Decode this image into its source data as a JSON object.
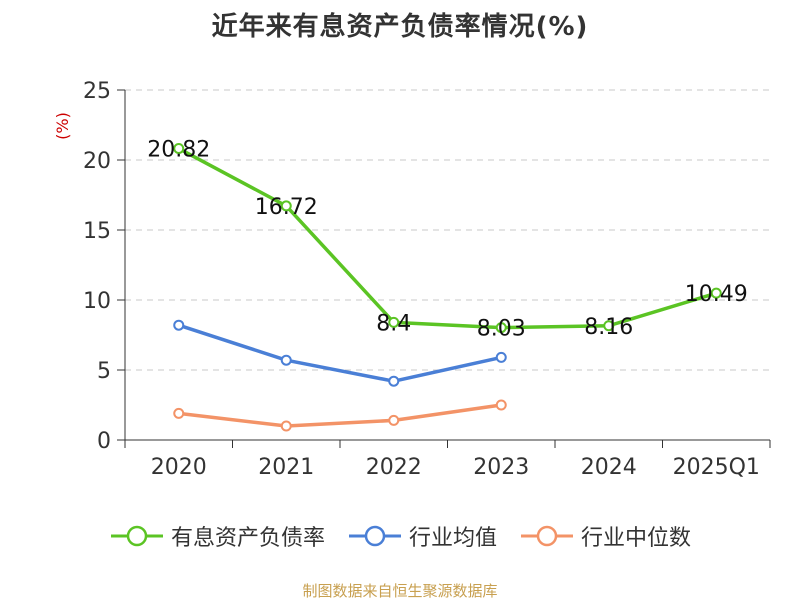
{
  "chart_data": {
    "type": "line",
    "title": "近年来有息资产负债率情况(%)",
    "ylabel": "(%)",
    "categories": [
      "2020",
      "2021",
      "2022",
      "2023",
      "2024",
      "2025Q1"
    ],
    "ylim": [
      0,
      25
    ],
    "yticks": [
      0,
      5,
      10,
      15,
      20,
      25
    ],
    "grid": true,
    "legend_position": "bottom",
    "series": [
      {
        "name": "有息资产负债率",
        "color": "#5bc424",
        "values": [
          20.82,
          16.72,
          8.4,
          8.03,
          8.16,
          10.49
        ],
        "data_labels": [
          "20.82",
          "16.72",
          "8.4",
          "8.03",
          "8.16",
          "10.49"
        ]
      },
      {
        "name": "行业均值",
        "color": "#4a7fd6",
        "values": [
          8.2,
          5.7,
          4.2,
          5.9,
          null,
          null
        ],
        "data_labels": null
      },
      {
        "name": "行业中位数",
        "color": "#f39367",
        "values": [
          1.9,
          1.0,
          1.4,
          2.5,
          null,
          null
        ],
        "data_labels": null
      }
    ]
  },
  "source_note": "制图数据来自恒生聚源数据库",
  "colors": {
    "axis": "#333333",
    "grid": "#c8c8c8",
    "ylabel": "#cc0000"
  }
}
